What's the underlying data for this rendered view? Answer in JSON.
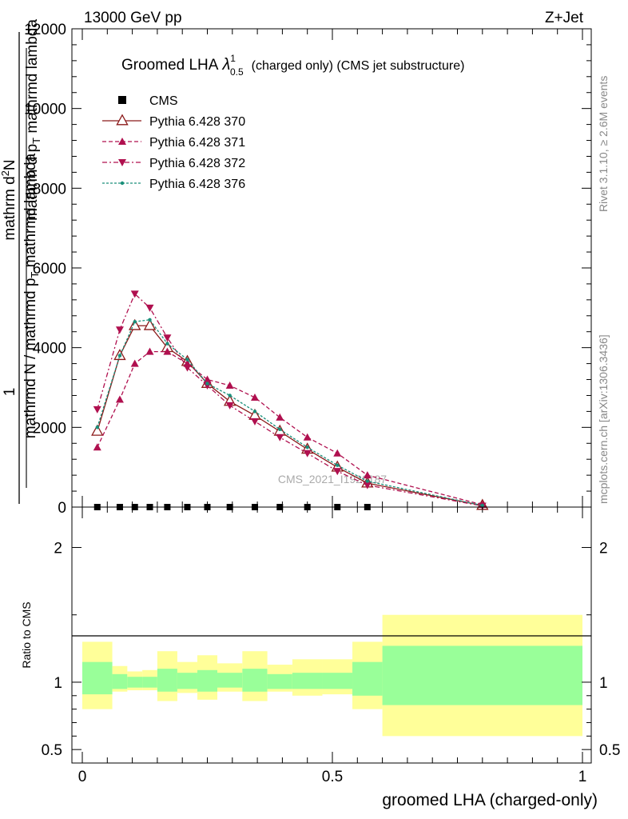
{
  "header": {
    "energy_label": "13000 GeV pp",
    "process_label": "Z+Jet",
    "side_top": "Rivet 3.1.10, ≥ 2.6M events",
    "side_bottom": "mcplots.cern.ch [arXiv:1306.3436]"
  },
  "main_plot": {
    "title_main": "Groomed LHA",
    "title_lambda": "λ",
    "title_sup": "1",
    "title_sub": "0.5",
    "title_rest": "(charged only) (CMS jet substructure)",
    "watermark": "CMS_2021_I1920187",
    "ylabel_num_top": "1",
    "ylabel_num_bot": "mathrmd N / mathrmd p",
    "ylabel_num_sub": "T",
    "ylabel_num_tail": "mathrmd lambda",
    "ylabel_den_top": "mathrm d",
    "ylabel_den_sup": "2",
    "ylabel_den_bot": "N",
    "ylabel_den_tail": "mathrm d p",
    "ylabel_den_sub": "T",
    "ylabel_den_end": "mathrmd lambda",
    "y_ticks": [
      "0",
      "2000",
      "4000",
      "6000",
      "8000",
      "10000",
      "12000"
    ]
  },
  "ratio_plot": {
    "ylabel": "Ratio to CMS",
    "y_ticks": [
      "0.5",
      "1",
      "2"
    ],
    "xlabel": "groomed LHA (charged-only)",
    "x_ticks": [
      "0",
      "0.5",
      "1"
    ]
  },
  "chart_data": {
    "type": "line",
    "xlabel": "groomed LHA (charged-only)",
    "xlim": [
      0,
      1
    ],
    "ylim": [
      0,
      12000
    ],
    "ratio_ylim": [
      0.4,
      2.3
    ],
    "x": [
      0.03,
      0.075,
      0.105,
      0.135,
      0.17,
      0.21,
      0.25,
      0.295,
      0.345,
      0.395,
      0.45,
      0.51,
      0.57,
      0.8
    ],
    "series": [
      {
        "name": "CMS",
        "color": "#000000",
        "marker": "square",
        "values": [
          0,
          0,
          0,
          0,
          0,
          0,
          0,
          0,
          0,
          0,
          0,
          0,
          0,
          0
        ]
      },
      {
        "name": "Pythia 6.428 370",
        "color": "#8b1a1a",
        "marker": "triangle-open",
        "dash": "",
        "values": [
          1900,
          3800,
          4550,
          4550,
          4000,
          3650,
          3100,
          2650,
          2300,
          1900,
          1450,
          1000,
          600,
          40
        ]
      },
      {
        "name": "Pythia 6.428 371",
        "color": "#b0104f",
        "marker": "triangle-up",
        "dash": "5,3",
        "values": [
          1500,
          2700,
          3600,
          3900,
          3900,
          3600,
          3200,
          3050,
          2750,
          2250,
          1750,
          1350,
          800,
          60
        ]
      },
      {
        "name": "Pythia 6.428 372",
        "color": "#b0104f",
        "marker": "triangle-down",
        "dash": "6,3,2,3",
        "values": [
          2450,
          4450,
          5350,
          5000,
          4250,
          3500,
          3050,
          2550,
          2150,
          1750,
          1350,
          900,
          550,
          30
        ]
      },
      {
        "name": "Pythia 6.428 376",
        "color": "#1a8f7a",
        "marker": "dot",
        "dash": "3,2",
        "values": [
          2000,
          3800,
          4650,
          4700,
          4100,
          3700,
          3100,
          2800,
          2400,
          1950,
          1500,
          1050,
          650,
          40
        ]
      }
    ],
    "cms_points_x": [
      0.03,
      0.075,
      0.105,
      0.135,
      0.17,
      0.21,
      0.25,
      0.295,
      0.345,
      0.395,
      0.45,
      0.51,
      0.57
    ],
    "ratio_bands": [
      {
        "x0": 0.0,
        "x1": 0.06,
        "inner": [
          0.91,
          1.15
        ],
        "outer": [
          0.8,
          1.3
        ]
      },
      {
        "x0": 0.06,
        "x1": 0.09,
        "inner": [
          0.95,
          1.06
        ],
        "outer": [
          0.93,
          1.12
        ]
      },
      {
        "x0": 0.09,
        "x1": 0.12,
        "inner": [
          0.96,
          1.04
        ],
        "outer": [
          0.94,
          1.08
        ]
      },
      {
        "x0": 0.12,
        "x1": 0.15,
        "inner": [
          0.96,
          1.04
        ],
        "outer": [
          0.94,
          1.09
        ]
      },
      {
        "x0": 0.15,
        "x1": 0.19,
        "inner": [
          0.93,
          1.1
        ],
        "outer": [
          0.86,
          1.23
        ]
      },
      {
        "x0": 0.19,
        "x1": 0.23,
        "inner": [
          0.95,
          1.07
        ],
        "outer": [
          0.92,
          1.15
        ]
      },
      {
        "x0": 0.23,
        "x1": 0.27,
        "inner": [
          0.93,
          1.09
        ],
        "outer": [
          0.87,
          1.2
        ]
      },
      {
        "x0": 0.27,
        "x1": 0.32,
        "inner": [
          0.96,
          1.07
        ],
        "outer": [
          0.93,
          1.14
        ]
      },
      {
        "x0": 0.32,
        "x1": 0.37,
        "inner": [
          0.93,
          1.1
        ],
        "outer": [
          0.86,
          1.23
        ]
      },
      {
        "x0": 0.37,
        "x1": 0.42,
        "inner": [
          0.95,
          1.06
        ],
        "outer": [
          0.93,
          1.13
        ]
      },
      {
        "x0": 0.42,
        "x1": 0.48,
        "inner": [
          0.95,
          1.07
        ],
        "outer": [
          0.9,
          1.17
        ]
      },
      {
        "x0": 0.48,
        "x1": 0.54,
        "inner": [
          0.95,
          1.07
        ],
        "outer": [
          0.91,
          1.17
        ]
      },
      {
        "x0": 0.54,
        "x1": 0.6,
        "inner": [
          0.9,
          1.15
        ],
        "outer": [
          0.8,
          1.3
        ]
      },
      {
        "x0": 0.6,
        "x1": 1.0,
        "inner": [
          0.83,
          1.27
        ],
        "outer": [
          0.6,
          1.5
        ]
      }
    ],
    "band_colors": {
      "inner": "#99ff99",
      "outer": "#ffff99"
    }
  }
}
